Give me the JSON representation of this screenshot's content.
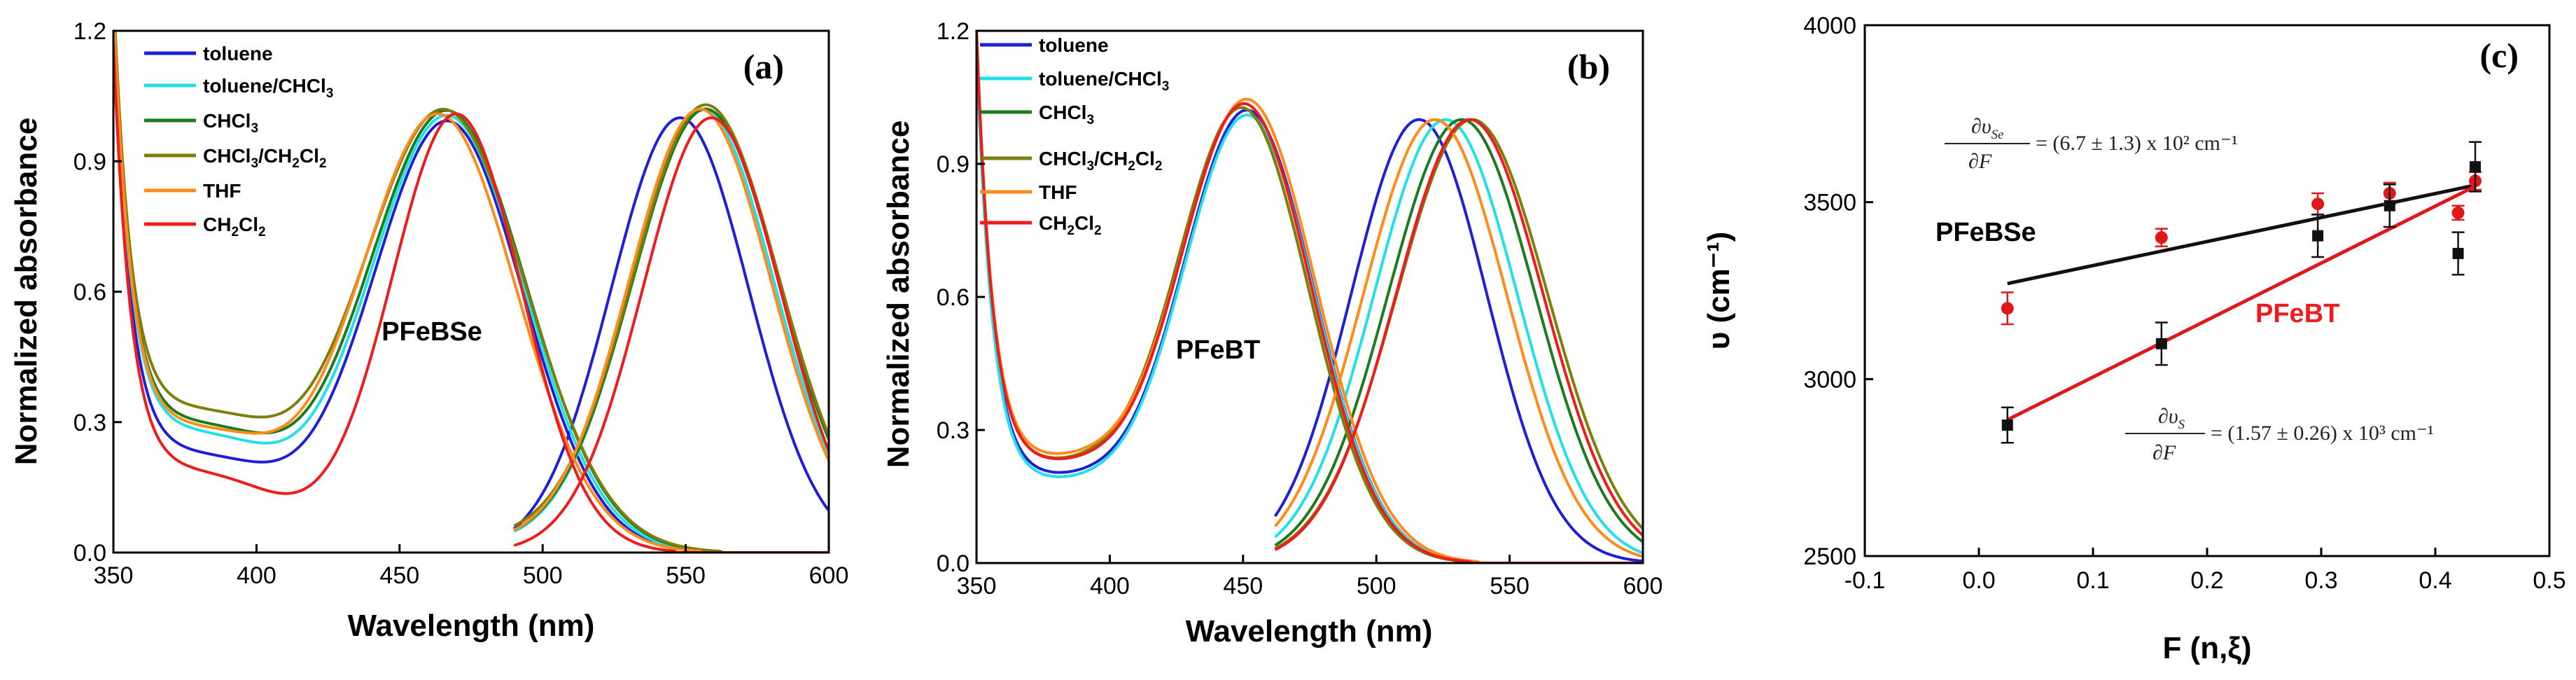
{
  "chart_data": [
    {
      "id": "a",
      "type": "line",
      "panel_label": "(a)",
      "compound": "PFeBSe",
      "xlabel": "Wavelength (nm)",
      "ylabel": "Normalized absorbance",
      "xlim": [
        350,
        600
      ],
      "ylim": [
        0,
        1.2
      ],
      "xticks": [
        350,
        400,
        450,
        500,
        550,
        600
      ],
      "yticks": [
        0.0,
        0.3,
        0.6,
        0.9,
        1.2
      ],
      "ytick_labels": [
        "0.0",
        "0.3",
        "0.6",
        "0.9",
        "1.2"
      ],
      "legend_position": "top-left",
      "series": [
        {
          "name": "toluene",
          "color": "#1f1fd6",
          "min": 0.23,
          "abs_peak": 467,
          "abs_width": 37,
          "abs_max": 0.98,
          "pl_peak": 548,
          "pl_width": 34,
          "pl_start": 490,
          "pl_tail": 0.0
        },
        {
          "name": "toluene/CHCl3",
          "color": "#22e0e8",
          "min": 0.28,
          "abs_peak": 467,
          "abs_width": 38,
          "abs_max": 0.99,
          "pl_peak": 556,
          "pl_width": 35,
          "pl_start": 490,
          "pl_tail": 0.02
        },
        {
          "name": "CHCl3",
          "color": "#1e7a1e",
          "min": 0.3,
          "abs_peak": 467,
          "abs_width": 39,
          "abs_max": 1.0,
          "pl_peak": 557,
          "pl_width": 36,
          "pl_start": 490,
          "pl_tail": 0.02
        },
        {
          "name": "CHCl3/CH2Cl2",
          "color": "#7e7e0a",
          "min": 0.33,
          "abs_peak": 466,
          "abs_width": 40,
          "abs_max": 1.0,
          "pl_peak": 557,
          "pl_width": 36,
          "pl_start": 490,
          "pl_tail": 0.03
        },
        {
          "name": "THF",
          "color": "#ff8c1a",
          "min": 0.29,
          "abs_peak": 464,
          "abs_width": 38,
          "abs_max": 0.99,
          "pl_peak": 555,
          "pl_width": 35,
          "pl_start": 490,
          "pl_tail": 0.02
        },
        {
          "name": "CH2Cl2",
          "color": "#ee1c1c",
          "min": 0.19,
          "abs_peak": 470,
          "abs_width": 32,
          "abs_max": 1.0,
          "pl_peak": 559,
          "pl_width": 34,
          "pl_start": 490,
          "pl_tail": 0.0
        }
      ]
    },
    {
      "id": "b",
      "type": "line",
      "panel_label": "(b)",
      "compound": "PFeBT",
      "xlabel": "Wavelength (nm)",
      "ylabel": "Normalized absorbance",
      "xlim": [
        350,
        600
      ],
      "ylim": [
        0,
        1.2
      ],
      "xticks": [
        350,
        400,
        450,
        500,
        550,
        600
      ],
      "yticks": [
        0.0,
        0.3,
        0.6,
        0.9,
        1.2
      ],
      "ytick_labels": [
        "0.0",
        "0.3",
        "0.6",
        "0.9",
        "1.2"
      ],
      "legend_position": "top-left",
      "series": [
        {
          "name": "toluene",
          "color": "#1f1fd6",
          "min": 0.19,
          "abs_peak": 452,
          "abs_width": 35,
          "abs_max": 1.0,
          "pl_peak": 516,
          "pl_width": 36,
          "pl_start": 462,
          "pl_tail": 0.0
        },
        {
          "name": "toluene/CHCl3",
          "color": "#22e0e8",
          "min": 0.18,
          "abs_peak": 452,
          "abs_width": 35,
          "abs_max": 0.99,
          "pl_peak": 526,
          "pl_width": 38,
          "pl_start": 462,
          "pl_tail": 0.0
        },
        {
          "name": "CHCl3",
          "color": "#1e7a1e",
          "min": 0.22,
          "abs_peak": 450,
          "abs_width": 35,
          "abs_max": 1.0,
          "pl_peak": 532,
          "pl_width": 39,
          "pl_start": 462,
          "pl_tail": 0.0
        },
        {
          "name": "CHCl3/CH2Cl2",
          "color": "#7e7e0a",
          "min": 0.22,
          "abs_peak": 450,
          "abs_width": 35,
          "abs_max": 1.0,
          "pl_peak": 536,
          "pl_width": 40,
          "pl_start": 462,
          "pl_tail": 0.0
        },
        {
          "name": "THF",
          "color": "#ff8c1a",
          "min": 0.23,
          "abs_peak": 452,
          "abs_width": 36,
          "abs_max": 1.02,
          "pl_peak": 522,
          "pl_width": 38,
          "pl_start": 462,
          "pl_tail": 0.0
        },
        {
          "name": "CH2Cl2",
          "color": "#ee1c1c",
          "min": 0.22,
          "abs_peak": 451,
          "abs_width": 35,
          "abs_max": 1.01,
          "pl_peak": 535,
          "pl_width": 39,
          "pl_start": 462,
          "pl_tail": 0.0
        }
      ]
    },
    {
      "id": "c",
      "type": "scatter",
      "panel_label": "(c)",
      "xlabel": "F (n,ξ)",
      "ylabel": "υ (cm⁻¹)",
      "xlim": [
        -0.1,
        0.5
      ],
      "ylim": [
        2500,
        4000
      ],
      "xticks": [
        -0.1,
        0.0,
        0.1,
        0.2,
        0.3,
        0.4,
        0.5
      ],
      "xtick_labels": [
        "-0.1",
        "0.0",
        "0.1",
        "0.2",
        "0.3",
        "0.4",
        "0.5"
      ],
      "yticks": [
        2500,
        3000,
        3500,
        4000
      ],
      "series": [
        {
          "name": "PFeBSe",
          "color": "#e01818",
          "marker": "circle",
          "line_color": "#111111",
          "points": [
            {
              "x": 0.025,
              "y": 3200,
              "err": 45
            },
            {
              "x": 0.16,
              "y": 3400,
              "err": 25
            },
            {
              "x": 0.297,
              "y": 3495,
              "err": 30
            },
            {
              "x": 0.36,
              "y": 3525,
              "err": 30
            },
            {
              "x": 0.42,
              "y": 3470,
              "err": 20
            },
            {
              "x": 0.435,
              "y": 3560,
              "err": 25
            }
          ],
          "fit": {
            "x": [
              0.025,
              0.435
            ],
            "y": [
              3270,
              3548
            ]
          },
          "equation": {
            "lhs_top": "∂υ",
            "lhs_sub": "Se",
            "lhs_bottom": "∂F",
            "rhs": "= (6.7 ± 1.3)  x 10²  cm⁻¹"
          }
        },
        {
          "name": "PFeBT",
          "color": "#111111",
          "marker": "square",
          "line_color": "#e01818",
          "points": [
            {
              "x": 0.025,
              "y": 2870,
              "err": 50
            },
            {
              "x": 0.16,
              "y": 3100,
              "err": 60
            },
            {
              "x": 0.297,
              "y": 3405,
              "err": 60
            },
            {
              "x": 0.36,
              "y": 3490,
              "err": 60
            },
            {
              "x": 0.42,
              "y": 3355,
              "err": 60
            },
            {
              "x": 0.435,
              "y": 3600,
              "err": 70
            }
          ],
          "fit": {
            "x": [
              0.025,
              0.435
            ],
            "y": [
              2885,
              3545
            ]
          },
          "equation": {
            "lhs_top": "∂υ",
            "lhs_sub": "S",
            "lhs_bottom": "∂F",
            "rhs": "= (1.57 ± 0.26)  x 10³  cm⁻¹"
          }
        }
      ]
    }
  ]
}
